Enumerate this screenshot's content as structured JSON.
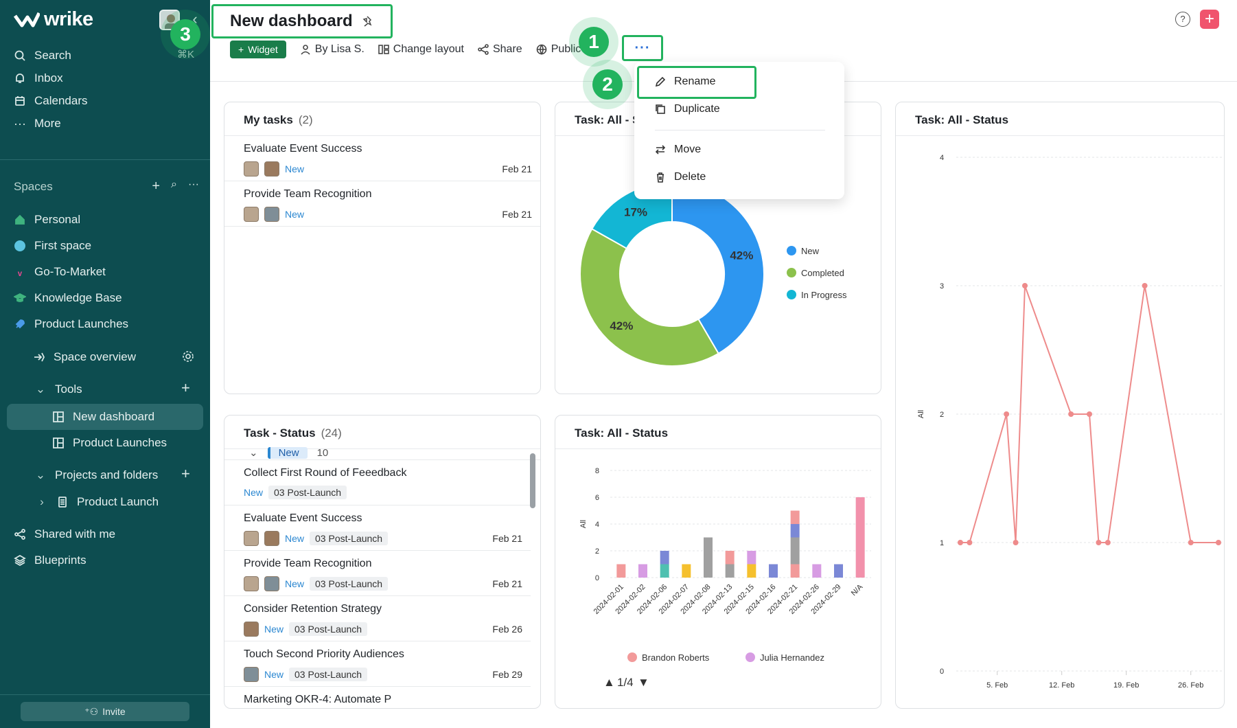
{
  "app": {
    "brand": "wrike",
    "accent": "#22b35e",
    "sidebar_bg": "#0d4d50"
  },
  "sidebar": {
    "search": "Search",
    "search_shortcut": "⌘K",
    "inbox": "Inbox",
    "calendars": "Calendars",
    "more": "More",
    "spaces_label": "Spaces",
    "spaces": [
      {
        "label": "Personal",
        "color": "#3fb37f"
      },
      {
        "label": "First space",
        "color": "#5cc4e0"
      },
      {
        "label": "Go-To-Market",
        "color": "#e4488f"
      },
      {
        "label": "Knowledge Base",
        "color": "#3fb37f"
      },
      {
        "label": "Product Launches",
        "color": "#4a9be8"
      }
    ],
    "space_overview": "Space overview",
    "tools": "Tools",
    "new_dashboard": "New dashboard",
    "product_launches_tool": "Product Launches",
    "projects_and_folders": "Projects and folders",
    "product_launch": "Product Launch",
    "shared_with_me": "Shared with me",
    "blueprints": "Blueprints",
    "invite": "Invite"
  },
  "header": {
    "title": "New dashboard",
    "widget": "Widget",
    "by_user": "By Lisa S.",
    "change_layout": "Change layout",
    "share": "Share",
    "public_link": "Public link",
    "more": "···",
    "help": "?",
    "add": "+"
  },
  "badges": {
    "one": "1",
    "two": "2",
    "three": "3"
  },
  "menu": {
    "rename": "Rename",
    "duplicate": "Duplicate",
    "move": "Move",
    "delete": "Delete"
  },
  "my_tasks": {
    "title": "My tasks",
    "count": "(2)",
    "rows": [
      {
        "name": "Evaluate Event Success",
        "status": "New",
        "date": "Feb 21"
      },
      {
        "name": "Provide Team Recognition",
        "status": "New",
        "date": "Feb 21"
      }
    ]
  },
  "task_status": {
    "title": "Task - Status",
    "count": "(24)",
    "group_label": "New",
    "group_count": "10",
    "rows": [
      {
        "name": "Collect First Round of Feeedback",
        "status": "New",
        "tag": "03 Post-Launch",
        "date": ""
      },
      {
        "name": "Evaluate Event Success",
        "status": "New",
        "tag": "03 Post-Launch",
        "date": "Feb 21"
      },
      {
        "name": "Provide Team Recognition",
        "status": "New",
        "tag": "03 Post-Launch",
        "date": "Feb 21"
      },
      {
        "name": "Consider Retention Strategy",
        "status": "New",
        "tag": "03 Post-Launch",
        "date": "Feb 26"
      },
      {
        "name": "Touch Second Priority Audiences",
        "status": "New",
        "tag": "03 Post-Launch",
        "date": "Feb 29"
      },
      {
        "name": "Marketing OKR-4: Automate P",
        "status": "",
        "tag": "",
        "date": ""
      }
    ]
  },
  "chart_data": [
    {
      "type": "pie",
      "title": "Task: All - Status",
      "categories": [
        "New",
        "Completed",
        "In Progress"
      ],
      "values": [
        42,
        42,
        17
      ],
      "labels": [
        "42%",
        "42%",
        "17%"
      ],
      "colors": [
        "#2d96f0",
        "#8cc14c",
        "#13b6d4"
      ],
      "legend": "right"
    },
    {
      "type": "bar",
      "title": "Task: All - Status",
      "ylabel": "All",
      "ylim": [
        0,
        8
      ],
      "yticks": [
        0,
        2,
        4,
        6,
        8
      ],
      "categories": [
        "2024-02-01",
        "2024-02-02",
        "2024-02-06",
        "2024-02-07",
        "2024-02-08",
        "2024-02-13",
        "2024-02-15",
        "2024-02-16",
        "2024-02-21",
        "2024-02-26",
        "2024-02-29",
        "N/A"
      ],
      "stacks": [
        [
          {
            "v": 1,
            "c": "#f29a9a"
          }
        ],
        [
          {
            "v": 1,
            "c": "#d79ce3"
          }
        ],
        [
          {
            "v": 1,
            "c": "#4fc0b0"
          },
          {
            "v": 1,
            "c": "#7b88d6"
          }
        ],
        [
          {
            "v": 1,
            "c": "#f5c02e"
          }
        ],
        [
          {
            "v": 3,
            "c": "#a0a0a0"
          }
        ],
        [
          {
            "v": 1,
            "c": "#a0a0a0"
          },
          {
            "v": 1,
            "c": "#f29a9a"
          }
        ],
        [
          {
            "v": 1,
            "c": "#f5c02e"
          },
          {
            "v": 1,
            "c": "#d79ce3"
          }
        ],
        [
          {
            "v": 1,
            "c": "#7b88d6"
          }
        ],
        [
          {
            "v": 1,
            "c": "#f29a9a"
          },
          {
            "v": 2,
            "c": "#a0a0a0"
          },
          {
            "v": 1,
            "c": "#7b88d6"
          },
          {
            "v": 1,
            "c": "#f29a9a"
          }
        ],
        [
          {
            "v": 1,
            "c": "#d79ce3"
          }
        ],
        [
          {
            "v": 1,
            "c": "#7b88d6"
          }
        ],
        [
          {
            "v": 6,
            "c": "#f291ab"
          }
        ]
      ],
      "legend_entries": [
        {
          "name": "Brandon Roberts",
          "color": "#f29a9a"
        },
        {
          "name": "Julia Hernandez",
          "color": "#d79ce3"
        }
      ],
      "pager": "1/4"
    },
    {
      "type": "line",
      "title": "Task: All - Status",
      "ylabel": "All",
      "ylim": [
        0,
        4
      ],
      "yticks": [
        0,
        1,
        2,
        3,
        4
      ],
      "xticks": [
        "5. Feb",
        "12. Feb",
        "19. Feb",
        "26. Feb"
      ],
      "x": [
        1,
        2,
        6,
        7,
        8,
        13,
        15,
        16,
        17,
        21,
        26,
        29
      ],
      "y": [
        1,
        1,
        2,
        1,
        3,
        2,
        2,
        1,
        1,
        3,
        1,
        1
      ],
      "xlim": [
        1,
        29
      ],
      "color": "#ee8b8b"
    }
  ]
}
